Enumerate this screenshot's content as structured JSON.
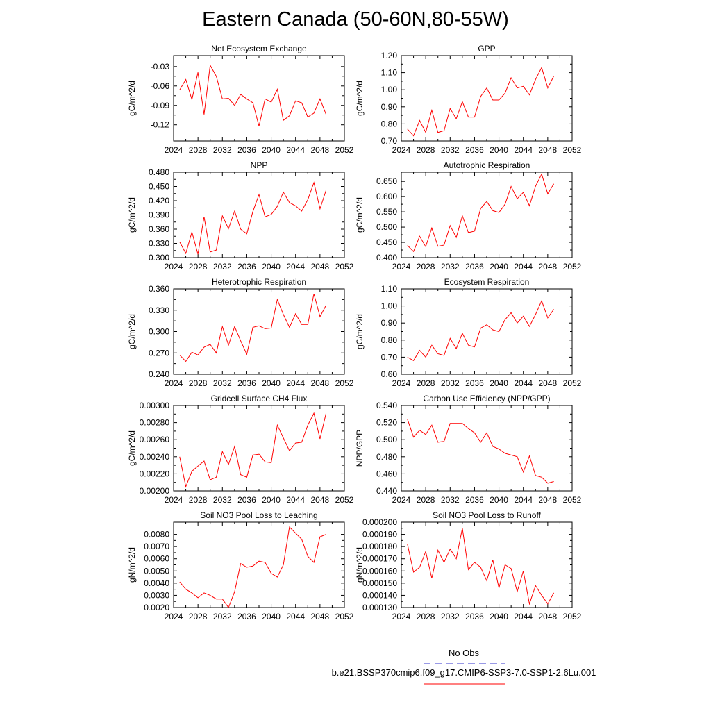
{
  "title": "Eastern Canada (50-60N,80-55W)",
  "legend": [
    {
      "label": "No Obs",
      "color": "#3333cc",
      "dash": true
    },
    {
      "label": "b.e21.BSSP370cmip6.f09_g17.CMIP6-SSP3-7.0-SSP1-2.6Lu.001",
      "color": "#ff0000",
      "dash": false
    }
  ],
  "x_ticks": [
    "2024",
    "2028",
    "2032",
    "2036",
    "2040",
    "2044",
    "2048",
    "2052"
  ],
  "chart_data": [
    {
      "type": "line",
      "title": "Net Ecosystem Exchange",
      "ylabel": "gC/m^2/d",
      "xlim": [
        2024,
        2052
      ],
      "ylim": [
        -0.145,
        -0.013
      ],
      "yticks": [
        -0.03,
        -0.06,
        -0.09,
        -0.12
      ],
      "ytick_labels": [
        "-0.03",
        "-0.06",
        "-0.09",
        "-0.12"
      ],
      "x": [
        2025,
        2026,
        2027,
        2028,
        2029,
        2030,
        2031,
        2032,
        2033,
        2034,
        2035,
        2036,
        2037,
        2038,
        2039,
        2040,
        2041,
        2042,
        2043,
        2044,
        2045,
        2046,
        2047,
        2048,
        2049
      ],
      "values": [
        -0.066,
        -0.05,
        -0.081,
        -0.039,
        -0.104,
        -0.028,
        -0.045,
        -0.08,
        -0.079,
        -0.09,
        -0.073,
        -0.08,
        -0.086,
        -0.122,
        -0.08,
        -0.085,
        -0.065,
        -0.113,
        -0.106,
        -0.083,
        -0.086,
        -0.108,
        -0.102,
        -0.08,
        -0.104
      ]
    },
    {
      "type": "line",
      "title": "GPP",
      "ylabel": "gC/m^2/d",
      "xlim": [
        2024,
        2052
      ],
      "ylim": [
        0.7,
        1.2
      ],
      "yticks": [
        0.7,
        0.8,
        0.9,
        1.0,
        1.1,
        1.2
      ],
      "ytick_labels": [
        "0.70",
        "0.80",
        "0.90",
        "1.00",
        "1.10",
        "1.20"
      ],
      "x": [
        2025,
        2026,
        2027,
        2028,
        2029,
        2030,
        2031,
        2032,
        2033,
        2034,
        2035,
        2036,
        2037,
        2038,
        2039,
        2040,
        2041,
        2042,
        2043,
        2044,
        2045,
        2046,
        2047,
        2048,
        2049
      ],
      "values": [
        0.77,
        0.73,
        0.82,
        0.75,
        0.88,
        0.75,
        0.76,
        0.89,
        0.83,
        0.93,
        0.84,
        0.84,
        0.96,
        1.01,
        0.94,
        0.94,
        0.98,
        1.07,
        1.01,
        1.02,
        0.97,
        1.06,
        1.13,
        1.01,
        1.08
      ]
    },
    {
      "type": "line",
      "title": "NPP",
      "ylabel": "gC/m^2/d",
      "xlim": [
        2024,
        2052
      ],
      "ylim": [
        0.3,
        0.48
      ],
      "yticks": [
        0.3,
        0.33,
        0.36,
        0.39,
        0.42,
        0.45,
        0.48
      ],
      "ytick_labels": [
        "0.300",
        "0.330",
        "0.360",
        "0.390",
        "0.420",
        "0.450",
        "0.480"
      ],
      "x": [
        2025,
        2026,
        2027,
        2028,
        2029,
        2030,
        2031,
        2032,
        2033,
        2034,
        2035,
        2036,
        2037,
        2038,
        2039,
        2040,
        2041,
        2042,
        2043,
        2044,
        2045,
        2046,
        2047,
        2048,
        2049
      ],
      "values": [
        0.333,
        0.309,
        0.354,
        0.307,
        0.386,
        0.312,
        0.316,
        0.388,
        0.361,
        0.398,
        0.36,
        0.35,
        0.397,
        0.433,
        0.386,
        0.391,
        0.408,
        0.438,
        0.416,
        0.409,
        0.398,
        0.422,
        0.458,
        0.403,
        0.442
      ]
    },
    {
      "type": "line",
      "title": "Autotrophic Respiration",
      "ylabel": "gC/m^2/d",
      "xlim": [
        2024,
        2052
      ],
      "ylim": [
        0.4,
        0.68
      ],
      "yticks": [
        0.4,
        0.45,
        0.5,
        0.55,
        0.6,
        0.65
      ],
      "ytick_labels": [
        "0.400",
        "0.450",
        "0.500",
        "0.550",
        "0.600",
        "0.650"
      ],
      "x": [
        2025,
        2026,
        2027,
        2028,
        2029,
        2030,
        2031,
        2032,
        2033,
        2034,
        2035,
        2036,
        2037,
        2038,
        2039,
        2040,
        2041,
        2042,
        2043,
        2044,
        2045,
        2046,
        2047,
        2048,
        2049
      ],
      "values": [
        0.44,
        0.42,
        0.47,
        0.436,
        0.497,
        0.437,
        0.441,
        0.505,
        0.466,
        0.537,
        0.482,
        0.487,
        0.561,
        0.584,
        0.554,
        0.548,
        0.575,
        0.633,
        0.593,
        0.614,
        0.57,
        0.634,
        0.674,
        0.609,
        0.642
      ]
    },
    {
      "type": "line",
      "title": "Heterotrophic Respiration",
      "ylabel": "gC/m^2/d",
      "xlim": [
        2024,
        2052
      ],
      "ylim": [
        0.24,
        0.36
      ],
      "yticks": [
        0.24,
        0.27,
        0.3,
        0.33,
        0.36
      ],
      "ytick_labels": [
        "0.240",
        "0.270",
        "0.300",
        "0.330",
        "0.360"
      ],
      "x": [
        2025,
        2026,
        2027,
        2028,
        2029,
        2030,
        2031,
        2032,
        2033,
        2034,
        2035,
        2036,
        2037,
        2038,
        2039,
        2040,
        2041,
        2042,
        2043,
        2044,
        2045,
        2046,
        2047,
        2048,
        2049
      ],
      "values": [
        0.267,
        0.258,
        0.271,
        0.267,
        0.278,
        0.282,
        0.27,
        0.307,
        0.281,
        0.307,
        0.287,
        0.268,
        0.306,
        0.308,
        0.304,
        0.305,
        0.345,
        0.324,
        0.306,
        0.325,
        0.31,
        0.31,
        0.353,
        0.321,
        0.337
      ]
    },
    {
      "type": "line",
      "title": "Ecosystem Respiration",
      "ylabel": "gC/m^2/d",
      "xlim": [
        2024,
        2052
      ],
      "ylim": [
        0.6,
        1.1
      ],
      "yticks": [
        0.6,
        0.7,
        0.8,
        0.9,
        1.0,
        1.1
      ],
      "ytick_labels": [
        "0.60",
        "0.70",
        "0.80",
        "0.90",
        "1.00",
        "1.10"
      ],
      "x": [
        2025,
        2026,
        2027,
        2028,
        2029,
        2030,
        2031,
        2032,
        2033,
        2034,
        2035,
        2036,
        2037,
        2038,
        2039,
        2040,
        2041,
        2042,
        2043,
        2044,
        2045,
        2046,
        2047,
        2048,
        2049
      ],
      "values": [
        0.7,
        0.68,
        0.74,
        0.7,
        0.77,
        0.72,
        0.71,
        0.81,
        0.75,
        0.84,
        0.77,
        0.76,
        0.87,
        0.89,
        0.86,
        0.85,
        0.92,
        0.96,
        0.9,
        0.94,
        0.88,
        0.95,
        1.03,
        0.93,
        0.98
      ]
    },
    {
      "type": "line",
      "title": "Gridcell Surface CH4 Flux",
      "ylabel": "gC/m^2/d",
      "xlim": [
        2024,
        2052
      ],
      "ylim": [
        0.002,
        0.003
      ],
      "yticks": [
        0.002,
        0.0022,
        0.0024,
        0.0026,
        0.0028,
        0.003
      ],
      "ytick_labels": [
        "0.00200",
        "0.00220",
        "0.00240",
        "0.00260",
        "0.00280",
        "0.00300"
      ],
      "x": [
        2025,
        2026,
        2027,
        2028,
        2029,
        2030,
        2031,
        2032,
        2033,
        2034,
        2035,
        2036,
        2037,
        2038,
        2039,
        2040,
        2041,
        2042,
        2043,
        2044,
        2045,
        2046,
        2047,
        2048,
        2049
      ],
      "values": [
        0.0024,
        0.00205,
        0.00223,
        0.00229,
        0.00235,
        0.00213,
        0.00216,
        0.00246,
        0.00231,
        0.00252,
        0.00219,
        0.00216,
        0.00242,
        0.00243,
        0.00234,
        0.00233,
        0.00277,
        0.00262,
        0.00247,
        0.00256,
        0.00257,
        0.00277,
        0.00291,
        0.00261,
        0.00291
      ]
    },
    {
      "type": "line",
      "title": "Carbon Use Efficiency (NPP/GPP)",
      "ylabel": "NPP/GPP",
      "xlim": [
        2024,
        2052
      ],
      "ylim": [
        0.44,
        0.54
      ],
      "yticks": [
        0.44,
        0.46,
        0.48,
        0.5,
        0.52,
        0.54
      ],
      "ytick_labels": [
        "0.440",
        "0.460",
        "0.480",
        "0.500",
        "0.520",
        "0.540"
      ],
      "x": [
        2025,
        2026,
        2027,
        2028,
        2029,
        2030,
        2031,
        2032,
        2033,
        2034,
        2035,
        2036,
        2037,
        2038,
        2039,
        2040,
        2041,
        2042,
        2043,
        2044,
        2045,
        2046,
        2047,
        2048,
        2049
      ],
      "values": [
        0.524,
        0.503,
        0.511,
        0.506,
        0.517,
        0.497,
        0.498,
        0.519,
        0.519,
        0.519,
        0.513,
        0.508,
        0.497,
        0.508,
        0.492,
        0.489,
        0.484,
        0.482,
        0.48,
        0.462,
        0.481,
        0.458,
        0.456,
        0.449,
        0.451
      ]
    },
    {
      "type": "line",
      "title": "Soil NO3 Pool Loss to Leaching",
      "ylabel": "gN/m^2/d",
      "xlim": [
        2024,
        2052
      ],
      "ylim": [
        0.002,
        0.009
      ],
      "yticks": [
        0.002,
        0.003,
        0.004,
        0.005,
        0.006,
        0.007,
        0.008
      ],
      "ytick_labels": [
        "0.0020",
        "0.0030",
        "0.0040",
        "0.0050",
        "0.0060",
        "0.0070",
        "0.0080"
      ],
      "x": [
        2025,
        2026,
        2027,
        2028,
        2029,
        2030,
        2031,
        2032,
        2033,
        2034,
        2035,
        2036,
        2037,
        2038,
        2039,
        2040,
        2041,
        2042,
        2043,
        2044,
        2045,
        2046,
        2047,
        2048,
        2049
      ],
      "values": [
        0.0041,
        0.0035,
        0.0032,
        0.0028,
        0.0032,
        0.003,
        0.0027,
        0.0027,
        0.002,
        0.0033,
        0.0056,
        0.0053,
        0.0054,
        0.0058,
        0.0057,
        0.0048,
        0.0045,
        0.0055,
        0.0086,
        0.0081,
        0.0076,
        0.0062,
        0.0057,
        0.0078,
        0.008
      ]
    },
    {
      "type": "line",
      "title": "Soil NO3 Pool Loss to Runoff",
      "ylabel": "gN/m^2/d",
      "xlim": [
        2024,
        2052
      ],
      "ylim": [
        0.00013,
        0.0002
      ],
      "yticks": [
        0.00013,
        0.00014,
        0.00015,
        0.00016,
        0.00017,
        0.00018,
        0.00019,
        0.0002
      ],
      "ytick_labels": [
        "0.000130",
        "0.000140",
        "0.000150",
        "0.000160",
        "0.000170",
        "0.000180",
        "0.000190",
        "0.000200"
      ],
      "x": [
        2025,
        2026,
        2027,
        2028,
        2029,
        2030,
        2031,
        2032,
        2033,
        2034,
        2035,
        2036,
        2037,
        2038,
        2039,
        2040,
        2041,
        2042,
        2043,
        2044,
        2045,
        2046,
        2047,
        2048,
        2049
      ],
      "values": [
        0.000182,
        0.000159,
        0.000163,
        0.000176,
        0.000154,
        0.000177,
        0.000167,
        0.000178,
        0.00017,
        0.000195,
        0.000161,
        0.000167,
        0.000163,
        0.000152,
        0.000169,
        0.000146,
        0.000165,
        0.000162,
        0.000143,
        0.00016,
        0.000133,
        0.000148,
        0.00014,
        0.000133,
        0.000142
      ]
    }
  ]
}
